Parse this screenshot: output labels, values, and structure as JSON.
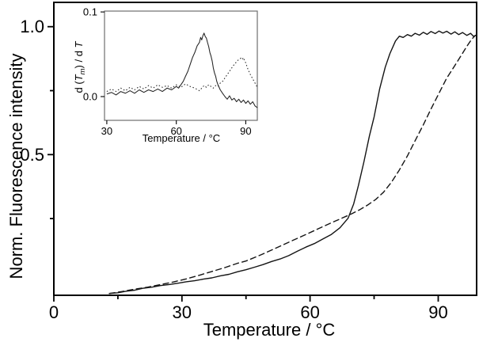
{
  "figure": {
    "main": {
      "ylabel": "Norm. Fluorescence intensity",
      "xlabel": "Temperature / °C"
    },
    "inset": {
      "xlabel": "Temperature / °C",
      "ylabel_parts": {
        "p1": "d (",
        "p2": "T",
        "p3": "m",
        "p4": ") / d ",
        "p5": "T"
      }
    },
    "colors": {
      "axis": "#000000",
      "curve": "#141414",
      "inset_frame": "#6e6e6e",
      "background": "#ffffff"
    }
  },
  "chart_data": [
    {
      "type": "line",
      "title": "",
      "xlabel": "Temperature / °C",
      "ylabel": "Norm. Fluorescence intensity",
      "xlim": [
        0,
        99
      ],
      "ylim": [
        -0.05,
        1.095
      ],
      "grid": false,
      "legend": "none",
      "xticks": [
        {
          "v": 0,
          "label": "0"
        },
        {
          "v": 30,
          "label": "30"
        },
        {
          "v": 60,
          "label": "60"
        },
        {
          "v": 90,
          "label": "90"
        }
      ],
      "xminor": [
        15,
        45,
        75
      ],
      "yticks": [
        {
          "v": 1.0,
          "label": "1.0"
        },
        {
          "v": 0.5,
          "label": "0.5"
        }
      ],
      "yminor": [
        0.75,
        0.25
      ],
      "series": [
        {
          "name": "solid",
          "style": "solid",
          "x": [
            13,
            15,
            17,
            19,
            21,
            23,
            25,
            27,
            29,
            31,
            33,
            35,
            37,
            39,
            41,
            43,
            45,
            47,
            49,
            51,
            53,
            55,
            57,
            59,
            61,
            63,
            65,
            67,
            68.9,
            70.2,
            71.3,
            72.6,
            73.9,
            75,
            76.3,
            77.6,
            78.7,
            80,
            80.9,
            81.8,
            82.8,
            83.7,
            84.6,
            85.6,
            86.5,
            87.4,
            88.3,
            89.3,
            90.2,
            91.1,
            92,
            93,
            93.9,
            94.8,
            95.7,
            96.7,
            97.6,
            98.3,
            99
          ],
          "y": [
            -0.043,
            -0.04,
            -0.034,
            -0.03,
            -0.022,
            -0.018,
            -0.012,
            -0.008,
            -0.003,
            0.003,
            0.007,
            0.013,
            0.018,
            0.026,
            0.032,
            0.042,
            0.05,
            0.06,
            0.07,
            0.082,
            0.092,
            0.105,
            0.122,
            0.138,
            0.152,
            0.17,
            0.188,
            0.214,
            0.251,
            0.307,
            0.378,
            0.471,
            0.573,
            0.647,
            0.758,
            0.842,
            0.895,
            0.944,
            0.963,
            0.958,
            0.969,
            0.963,
            0.974,
            0.967,
            0.978,
            0.97,
            0.981,
            0.973,
            0.983,
            0.975,
            0.982,
            0.971,
            0.98,
            0.969,
            0.977,
            0.966,
            0.974,
            0.962,
            0.968
          ]
        },
        {
          "name": "dashed",
          "style": "dashed",
          "x": [
            13,
            16,
            19,
            22,
            25,
            28,
            31,
            34,
            37,
            40,
            43,
            45,
            48.5,
            52.2,
            55.9,
            59.6,
            62.4,
            65.2,
            67.4,
            69.8,
            71.7,
            73.5,
            75.4,
            77.2,
            79.1,
            80.9,
            82.8,
            84.6,
            86.5,
            88.3,
            90.2,
            92,
            93.9,
            95.4,
            96.7,
            97.8,
            98.7
          ],
          "y": [
            -0.043,
            -0.035,
            -0.026,
            -0.018,
            -0.008,
            0.002,
            0.014,
            0.028,
            0.043,
            0.058,
            0.075,
            0.084,
            0.108,
            0.136,
            0.164,
            0.192,
            0.214,
            0.235,
            0.251,
            0.269,
            0.285,
            0.303,
            0.325,
            0.353,
            0.393,
            0.44,
            0.495,
            0.554,
            0.616,
            0.678,
            0.74,
            0.799,
            0.848,
            0.888,
            0.923,
            0.95,
            0.966
          ]
        }
      ]
    },
    {
      "type": "line",
      "title": "",
      "xlabel": "Temperature / °C",
      "ylabel": "d (Tm) / d T",
      "xlim": [
        29,
        95
      ],
      "ylim": [
        -0.028,
        0.101
      ],
      "grid": false,
      "legend": "none",
      "xticks": [
        {
          "v": 30,
          "label": "30"
        },
        {
          "v": 60,
          "label": "60"
        },
        {
          "v": 90,
          "label": "90"
        }
      ],
      "xminor": [],
      "yticks": [
        {
          "v": 0.1,
          "label": "0.1"
        },
        {
          "v": 0.0,
          "label": "0.0"
        }
      ],
      "yminor": [],
      "series": [
        {
          "name": "solid",
          "style": "solid",
          "x": [
            30,
            32,
            34,
            36,
            38,
            40,
            42,
            44,
            46,
            48,
            50,
            52,
            54,
            56,
            58,
            60,
            61,
            62,
            63,
            64,
            65,
            66,
            67,
            68,
            69,
            70,
            70.5,
            71,
            71.5,
            72,
            72.5,
            73,
            73.5,
            74,
            74.5,
            75,
            75.5,
            76,
            76.5,
            77,
            77.5,
            78,
            79,
            80,
            81,
            82,
            83,
            84,
            85,
            86,
            87,
            88,
            89,
            90,
            91,
            92,
            93,
            94,
            95
          ],
          "y": [
            0.003,
            0.005,
            0.002,
            0.006,
            0.004,
            0.007,
            0.004,
            0.008,
            0.005,
            0.008,
            0.006,
            0.009,
            0.006,
            0.01,
            0.008,
            0.012,
            0.01,
            0.014,
            0.018,
            0.024,
            0.03,
            0.038,
            0.046,
            0.052,
            0.06,
            0.064,
            0.07,
            0.067,
            0.072,
            0.075,
            0.071,
            0.069,
            0.064,
            0.059,
            0.052,
            0.048,
            0.042,
            0.034,
            0.028,
            0.024,
            0.018,
            0.014,
            0.008,
            0.004,
            0.0,
            -0.003,
            0.001,
            -0.004,
            -0.002,
            -0.006,
            -0.003,
            -0.007,
            -0.004,
            -0.008,
            -0.005,
            -0.009,
            -0.006,
            -0.011,
            -0.013
          ]
        },
        {
          "name": "dotted",
          "style": "dotted",
          "x": [
            30,
            32,
            34,
            36,
            38,
            40,
            42,
            44,
            46,
            48,
            50,
            52,
            54,
            56,
            58,
            60,
            62,
            64,
            66,
            68,
            70,
            71,
            72,
            73,
            74,
            75,
            76,
            77,
            78,
            79,
            80,
            81,
            82,
            83,
            84,
            85,
            86,
            87,
            88,
            88.5,
            89,
            89.5,
            90,
            90.5,
            91,
            92,
            93,
            94,
            95
          ],
          "y": [
            0.006,
            0.009,
            0.006,
            0.01,
            0.007,
            0.011,
            0.008,
            0.012,
            0.009,
            0.013,
            0.01,
            0.014,
            0.011,
            0.013,
            0.01,
            0.014,
            0.011,
            0.015,
            0.012,
            0.01,
            0.007,
            0.01,
            0.013,
            0.011,
            0.014,
            0.012,
            0.01,
            0.013,
            0.012,
            0.016,
            0.018,
            0.022,
            0.026,
            0.03,
            0.034,
            0.038,
            0.041,
            0.044,
            0.0455,
            0.044,
            0.046,
            0.042,
            0.04,
            0.036,
            0.032,
            0.026,
            0.021,
            0.016,
            0.011
          ]
        }
      ]
    }
  ]
}
